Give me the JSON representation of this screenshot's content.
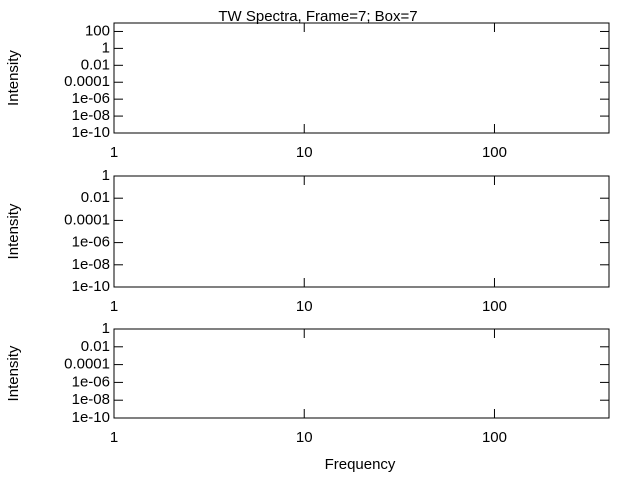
{
  "chart_data": [
    {
      "type": "line",
      "title": "TW Spectra, Frame=7; Box=7",
      "ylabel": "Intensity",
      "xlog": true,
      "ylog": true,
      "xlim": [
        1,
        400
      ],
      "xticks": [
        1,
        10,
        100
      ],
      "ylim": [
        1e-10,
        1000
      ],
      "yticks": [
        100,
        1,
        0.01,
        0.0001,
        {
          "value": 1e-06,
          "label": "1e-06"
        },
        {
          "value": 1e-08,
          "label": "1e-08"
        },
        1e-10
      ]
    },
    {
      "type": "line",
      "ylabel": "Intensity",
      "xlog": true,
      "ylog": true,
      "xlim": [
        1,
        400
      ],
      "xticks": [
        1,
        10,
        100
      ],
      "ylim": [
        1e-10,
        1
      ],
      "yticks": [
        1,
        0.01,
        0.0001,
        {
          "value": 1e-06,
          "label": "1e-06"
        },
        {
          "value": 1e-08,
          "label": "1e-08"
        },
        1e-10
      ]
    },
    {
      "type": "line",
      "ylabel": "Intensity",
      "xlabel": "Frequency",
      "xlog": true,
      "ylog": true,
      "xlim": [
        1,
        400
      ],
      "xticks": [
        1,
        10,
        100
      ],
      "ylim": [
        1e-10,
        1
      ],
      "yticks": [
        1,
        0.01,
        0.0001,
        {
          "value": 1e-06,
          "label": "1e-06"
        },
        {
          "value": 1e-08,
          "label": "1e-08"
        },
        1e-10
      ]
    }
  ]
}
